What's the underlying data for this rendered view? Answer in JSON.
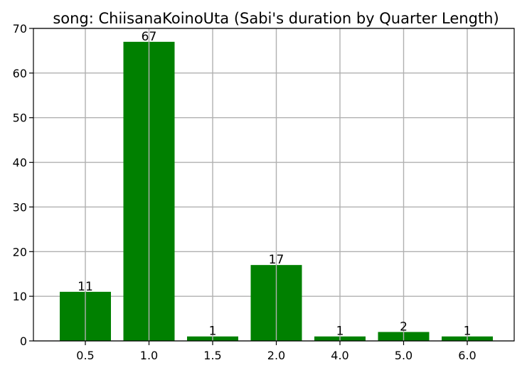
{
  "chart_data": {
    "type": "bar",
    "title": "song: ChiisanaKoinoUta (Sabi's duration by Quarter Length)",
    "categories": [
      "0.5",
      "1.0",
      "1.5",
      "2.0",
      "4.0",
      "5.0",
      "6.0"
    ],
    "values": [
      11,
      67,
      1,
      17,
      1,
      2,
      1
    ],
    "xlabel": "",
    "ylabel": "",
    "ylim": [
      0,
      70
    ],
    "yticks": [
      0,
      10,
      20,
      30,
      40,
      50,
      60,
      70
    ],
    "grid": true,
    "bar_color": "#008000",
    "data_labels": true
  }
}
